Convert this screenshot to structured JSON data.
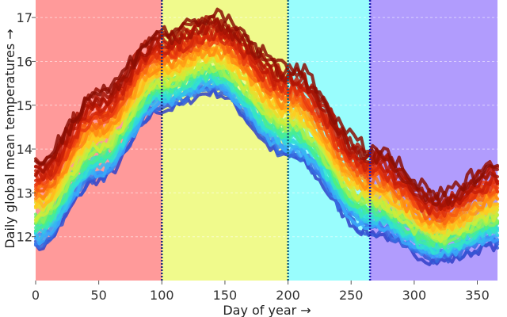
{
  "chart_data": {
    "type": "line",
    "title": "",
    "xlabel": "Day of year →",
    "ylabel": "Daily global mean temperatures →",
    "xlim": [
      0,
      366
    ],
    "ylim": [
      11,
      17.4
    ],
    "x_ticks": [
      0,
      50,
      100,
      150,
      200,
      250,
      300,
      350
    ],
    "y_ticks": [
      12,
      13,
      14,
      15,
      16,
      17
    ],
    "grid": true,
    "legend": "none",
    "background_bands": [
      {
        "from": 0,
        "to": 100,
        "color": "#ff9a9a"
      },
      {
        "from": 100,
        "to": 200,
        "color": "#f0fa8c"
      },
      {
        "from": 200,
        "to": 265,
        "color": "#99fdfd"
      },
      {
        "from": 265,
        "to": 366,
        "color": "#b19cfd"
      }
    ],
    "dividers": [
      {
        "x": 100,
        "color": "#1f2a7a"
      },
      {
        "x": 200,
        "color": "#16607a"
      },
      {
        "x": 265,
        "color": "#1c1cb5"
      }
    ],
    "key_days": [
      0,
      50,
      100,
      140,
      200,
      265,
      320,
      366
    ],
    "series_count": 40,
    "series_colormap": [
      "#3040c8",
      "#3ba0ff",
      "#2de1d8",
      "#52f07a",
      "#c8f03c",
      "#ffd020",
      "#ff8a10",
      "#f04010",
      "#c01806",
      "#8a0e04"
    ],
    "coolest_series_values": [
      11.8,
      13.35,
      14.95,
      15.35,
      13.9,
      12.15,
      11.5,
      11.85
    ],
    "warmest_series_values": [
      13.65,
      15.25,
      16.6,
      16.95,
      15.85,
      13.95,
      12.9,
      13.6
    ]
  }
}
